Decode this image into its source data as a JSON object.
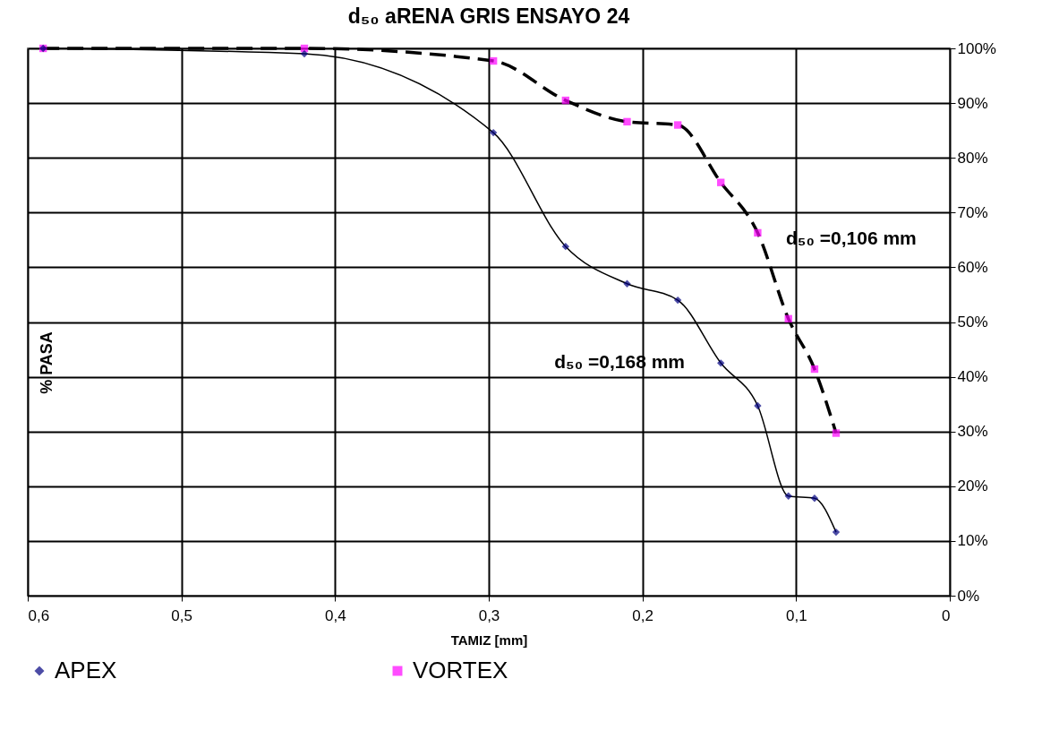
{
  "chart_data": {
    "type": "line",
    "title": "d₅₀ aRENA GRIS ENSAYO 24",
    "xlabel": "TAMIZ [mm]",
    "ylabel": "% PASA",
    "x": [
      0.59,
      0.42,
      0.297,
      0.25,
      0.21,
      0.177,
      0.149,
      0.125,
      0.105,
      0.088,
      0.074
    ],
    "series": [
      {
        "name": "APEX",
        "color": "#000080",
        "marker": "diamond",
        "line_style": "solid",
        "values": [
          100,
          99.0,
          84.6,
          63.8,
          57.0,
          54.0,
          42.5,
          34.7,
          18.2,
          17.8,
          11.6
        ]
      },
      {
        "name": "VORTEX",
        "color": "#ff00ff",
        "marker": "square",
        "line_style": "dashed",
        "values": [
          100,
          100,
          97.7,
          90.5,
          86.6,
          86.0,
          75.5,
          66.3,
          50.6,
          41.4,
          29.7
        ]
      }
    ],
    "xlim": [
      0.6,
      0
    ],
    "xticks": [
      {
        "value": 0.6,
        "label": "0,6"
      },
      {
        "value": 0.5,
        "label": "0,5"
      },
      {
        "value": 0.4,
        "label": "0,4"
      },
      {
        "value": 0.3,
        "label": "0,3"
      },
      {
        "value": 0.2,
        "label": "0,2"
      },
      {
        "value": 0.1,
        "label": "0,1"
      },
      0
    ],
    "ylim": [
      0,
      100
    ],
    "yticks": [
      {
        "value": 0,
        "label": "0%"
      },
      {
        "value": 10,
        "label": "10%"
      },
      {
        "value": 20,
        "label": "20%"
      },
      {
        "value": 30,
        "label": "30%"
      },
      {
        "value": 40,
        "label": "40%"
      },
      {
        "value": 50,
        "label": "50%"
      },
      {
        "value": 60,
        "label": "60%"
      },
      {
        "value": 70,
        "label": "70%"
      },
      {
        "value": 80,
        "label": "80%"
      },
      {
        "value": 90,
        "label": "90%"
      },
      {
        "value": 100,
        "label": "100%"
      }
    ],
    "annotations": [
      "d₅₀ =0,106 mm",
      "d₅₀ =0,168 mm"
    ],
    "grid": true,
    "legend": "bottom"
  }
}
